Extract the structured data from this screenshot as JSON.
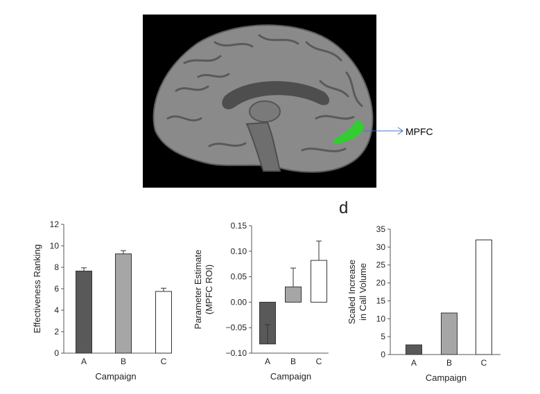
{
  "brain_image": {
    "roi_label": "MPFC",
    "background": "#000000",
    "roi_color": "#33cc33"
  },
  "panel_letter": "d",
  "chart_data": [
    {
      "type": "bar",
      "categories": [
        "A",
        "B",
        "C"
      ],
      "values": [
        7.65,
        9.25,
        5.75
      ],
      "errors": [
        0.3,
        0.3,
        0.3
      ],
      "colors": [
        "#595959",
        "#a6a6a6",
        "#ffffff"
      ],
      "xlabel": "Campaign",
      "ylabel": "Effectiveness Ranking",
      "ylim": [
        0,
        12
      ],
      "yticks": [
        0,
        2,
        4,
        6,
        8,
        10,
        12
      ],
      "ytick_labels": [
        "0",
        "2",
        "4",
        "6",
        "8",
        "10",
        "12"
      ],
      "grid": false
    },
    {
      "type": "bar",
      "categories": [
        "A",
        "B",
        "C"
      ],
      "values": [
        -0.082,
        0.03,
        0.082
      ],
      "errors": [
        0.038,
        0.037,
        0.038
      ],
      "colors": [
        "#595959",
        "#a6a6a6",
        "#ffffff"
      ],
      "xlabel": "Campaign",
      "ylabel": [
        "Parameter Estimate",
        "(MPFC ROI)"
      ],
      "ylim": [
        -0.1,
        0.15
      ],
      "yticks": [
        -0.1,
        -0.05,
        0,
        0.05,
        0.1,
        0.15
      ],
      "ytick_labels": [
        "−0.10",
        "−0.05",
        "0.00",
        "0.05",
        "0.10",
        "0.15"
      ],
      "grid": false
    },
    {
      "type": "bar",
      "categories": [
        "A",
        "B",
        "C"
      ],
      "values": [
        2.7,
        11.6,
        32.0
      ],
      "errors": [
        0,
        0,
        0
      ],
      "colors": [
        "#595959",
        "#a6a6a6",
        "#ffffff"
      ],
      "xlabel": "Campaign",
      "ylabel": [
        "Scaled Increase",
        "in Call Volume"
      ],
      "ylim": [
        0,
        35
      ],
      "yticks": [
        0,
        5,
        10,
        15,
        20,
        25,
        30,
        35
      ],
      "ytick_labels": [
        "0",
        "5",
        "10",
        "15",
        "20",
        "25",
        "30",
        "35"
      ],
      "grid": false
    }
  ]
}
